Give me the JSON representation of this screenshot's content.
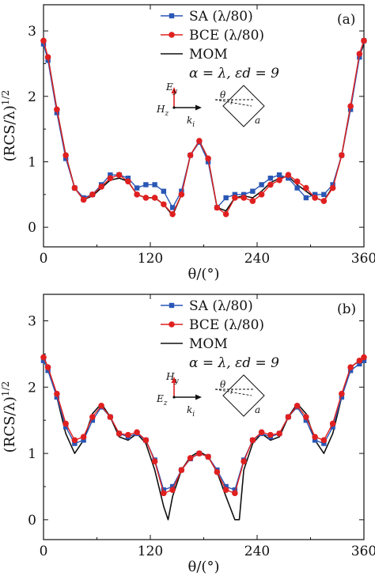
{
  "chart_data": [
    {
      "type": "line",
      "panel_label": "(a)",
      "xlabel": "θ/(°)",
      "ylabel": "(RCS/λ)^1/2",
      "xlim": [
        0,
        360
      ],
      "ylim": [
        -0.3,
        3.4
      ],
      "xticks": [
        0,
        120,
        240,
        360
      ],
      "yticks": [
        0,
        1,
        2,
        3
      ],
      "grid": false,
      "legend_position": "top-right",
      "legend_note": "α = λ, εd = 9",
      "inset": {
        "e_label": "E",
        "e_sub": "y",
        "h_label": "H",
        "h_sub": "z",
        "k_label": "k",
        "k_sub": "i",
        "theta": "θ",
        "a": "a"
      },
      "series": [
        {
          "name": "SA (λ/80)",
          "color": "#2a57b5",
          "marker": "square",
          "x": [
            0,
            5,
            15,
            25,
            35,
            45,
            55,
            65,
            75,
            85,
            95,
            105,
            115,
            125,
            135,
            145,
            155,
            165,
            175,
            185,
            195,
            205,
            215,
            225,
            235,
            245,
            255,
            265,
            275,
            285,
            295,
            305,
            315,
            325,
            335,
            345,
            355,
            360
          ],
          "values": [
            2.8,
            2.55,
            1.75,
            1.05,
            0.6,
            0.45,
            0.5,
            0.65,
            0.8,
            0.8,
            0.75,
            0.6,
            0.65,
            0.65,
            0.55,
            0.3,
            0.55,
            1.1,
            1.3,
            1.0,
            0.3,
            0.45,
            0.5,
            0.5,
            0.55,
            0.65,
            0.75,
            0.8,
            0.75,
            0.6,
            0.45,
            0.5,
            0.5,
            0.65,
            1.1,
            1.8,
            2.6,
            2.85
          ]
        },
        {
          "name": "BCE (λ/80)",
          "color": "#e02020",
          "marker": "circle",
          "x": [
            0,
            5,
            15,
            25,
            35,
            45,
            55,
            65,
            75,
            85,
            95,
            105,
            115,
            125,
            135,
            145,
            155,
            165,
            175,
            185,
            195,
            205,
            215,
            225,
            235,
            245,
            255,
            265,
            275,
            285,
            295,
            305,
            315,
            325,
            335,
            345,
            355,
            360
          ],
          "values": [
            2.85,
            2.6,
            1.8,
            1.1,
            0.6,
            0.42,
            0.5,
            0.62,
            0.75,
            0.8,
            0.7,
            0.5,
            0.45,
            0.45,
            0.35,
            0.2,
            0.5,
            1.1,
            1.32,
            1.05,
            0.3,
            0.2,
            0.45,
            0.45,
            0.4,
            0.5,
            0.65,
            0.72,
            0.8,
            0.7,
            0.6,
            0.45,
            0.4,
            0.6,
            1.1,
            1.85,
            2.65,
            2.85
          ]
        },
        {
          "name": "MOM",
          "color": "#111111",
          "marker": "none",
          "x": [
            0,
            5,
            15,
            25,
            35,
            45,
            55,
            65,
            75,
            85,
            95,
            105,
            115,
            125,
            135,
            145,
            155,
            165,
            175,
            185,
            195,
            205,
            215,
            225,
            235,
            245,
            255,
            265,
            275,
            285,
            295,
            305,
            315,
            325,
            335,
            345,
            355,
            360
          ],
          "values": [
            2.8,
            2.6,
            1.8,
            1.1,
            0.6,
            0.42,
            0.48,
            0.6,
            0.72,
            0.75,
            0.7,
            0.5,
            0.45,
            0.45,
            0.35,
            0.18,
            0.5,
            1.1,
            1.32,
            1.05,
            0.3,
            0.25,
            0.45,
            0.48,
            0.45,
            0.55,
            0.68,
            0.75,
            0.78,
            0.65,
            0.55,
            0.45,
            0.4,
            0.62,
            1.1,
            1.85,
            2.62,
            2.8
          ]
        }
      ]
    },
    {
      "type": "line",
      "panel_label": "(b)",
      "xlabel": "θ/(°)",
      "ylabel": "(RCS/λ)^1/2",
      "xlim": [
        0,
        360
      ],
      "ylim": [
        -0.3,
        3.4
      ],
      "xticks": [
        0,
        120,
        240,
        360
      ],
      "yticks": [
        0,
        1,
        2,
        3
      ],
      "grid": false,
      "legend_position": "top-right",
      "legend_note": "α = λ, εd = 9",
      "inset": {
        "e_label": "H",
        "e_sub": "y",
        "h_label": "E",
        "h_sub": "z",
        "k_label": "k",
        "k_sub": "i",
        "theta": "θ",
        "a": "a"
      },
      "series": [
        {
          "name": "SA (λ/80)",
          "color": "#2a57b5",
          "marker": "square",
          "x": [
            0,
            5,
            15,
            25,
            35,
            45,
            55,
            65,
            75,
            85,
            95,
            105,
            115,
            125,
            135,
            145,
            155,
            165,
            175,
            185,
            195,
            205,
            215,
            225,
            235,
            245,
            255,
            265,
            275,
            285,
            295,
            305,
            315,
            325,
            335,
            345,
            355,
            360
          ],
          "values": [
            2.4,
            2.25,
            1.85,
            1.4,
            1.15,
            1.2,
            1.5,
            1.7,
            1.55,
            1.3,
            1.25,
            1.3,
            1.2,
            0.9,
            0.45,
            0.5,
            0.75,
            0.92,
            1.0,
            0.95,
            0.75,
            0.5,
            0.45,
            0.9,
            1.2,
            1.3,
            1.25,
            1.3,
            1.55,
            1.7,
            1.5,
            1.2,
            1.15,
            1.4,
            1.85,
            2.25,
            2.35,
            2.4
          ]
        },
        {
          "name": "BCE (λ/80)",
          "color": "#e02020",
          "marker": "circle",
          "x": [
            0,
            5,
            15,
            25,
            35,
            45,
            55,
            65,
            75,
            85,
            95,
            105,
            115,
            125,
            135,
            145,
            155,
            165,
            175,
            185,
            195,
            205,
            215,
            225,
            235,
            245,
            255,
            265,
            275,
            285,
            295,
            305,
            315,
            325,
            335,
            345,
            355,
            360
          ],
          "values": [
            2.45,
            2.3,
            1.9,
            1.45,
            1.2,
            1.25,
            1.55,
            1.72,
            1.55,
            1.3,
            1.28,
            1.32,
            1.2,
            0.88,
            0.4,
            0.45,
            0.75,
            0.93,
            1.0,
            0.95,
            0.72,
            0.45,
            0.4,
            0.88,
            1.2,
            1.32,
            1.28,
            1.3,
            1.55,
            1.72,
            1.55,
            1.25,
            1.2,
            1.45,
            1.9,
            2.3,
            2.4,
            2.45
          ]
        },
        {
          "name": "MOM",
          "color": "#111111",
          "marker": "none",
          "x": [
            0,
            5,
            15,
            25,
            35,
            45,
            55,
            65,
            75,
            85,
            95,
            105,
            115,
            125,
            135,
            140,
            145,
            155,
            165,
            175,
            185,
            195,
            205,
            215,
            220,
            225,
            235,
            245,
            255,
            265,
            275,
            285,
            295,
            305,
            315,
            325,
            335,
            345,
            355,
            360
          ],
          "values": [
            2.45,
            2.3,
            1.85,
            1.3,
            1.0,
            1.2,
            1.6,
            1.75,
            1.55,
            1.25,
            1.2,
            1.3,
            1.15,
            0.75,
            0.2,
            0.0,
            0.35,
            0.75,
            0.95,
            1.03,
            0.95,
            0.72,
            0.35,
            0.0,
            0.0,
            0.75,
            1.15,
            1.3,
            1.2,
            1.25,
            1.55,
            1.75,
            1.6,
            1.2,
            1.0,
            1.3,
            1.85,
            2.3,
            2.4,
            2.45
          ]
        }
      ]
    }
  ]
}
